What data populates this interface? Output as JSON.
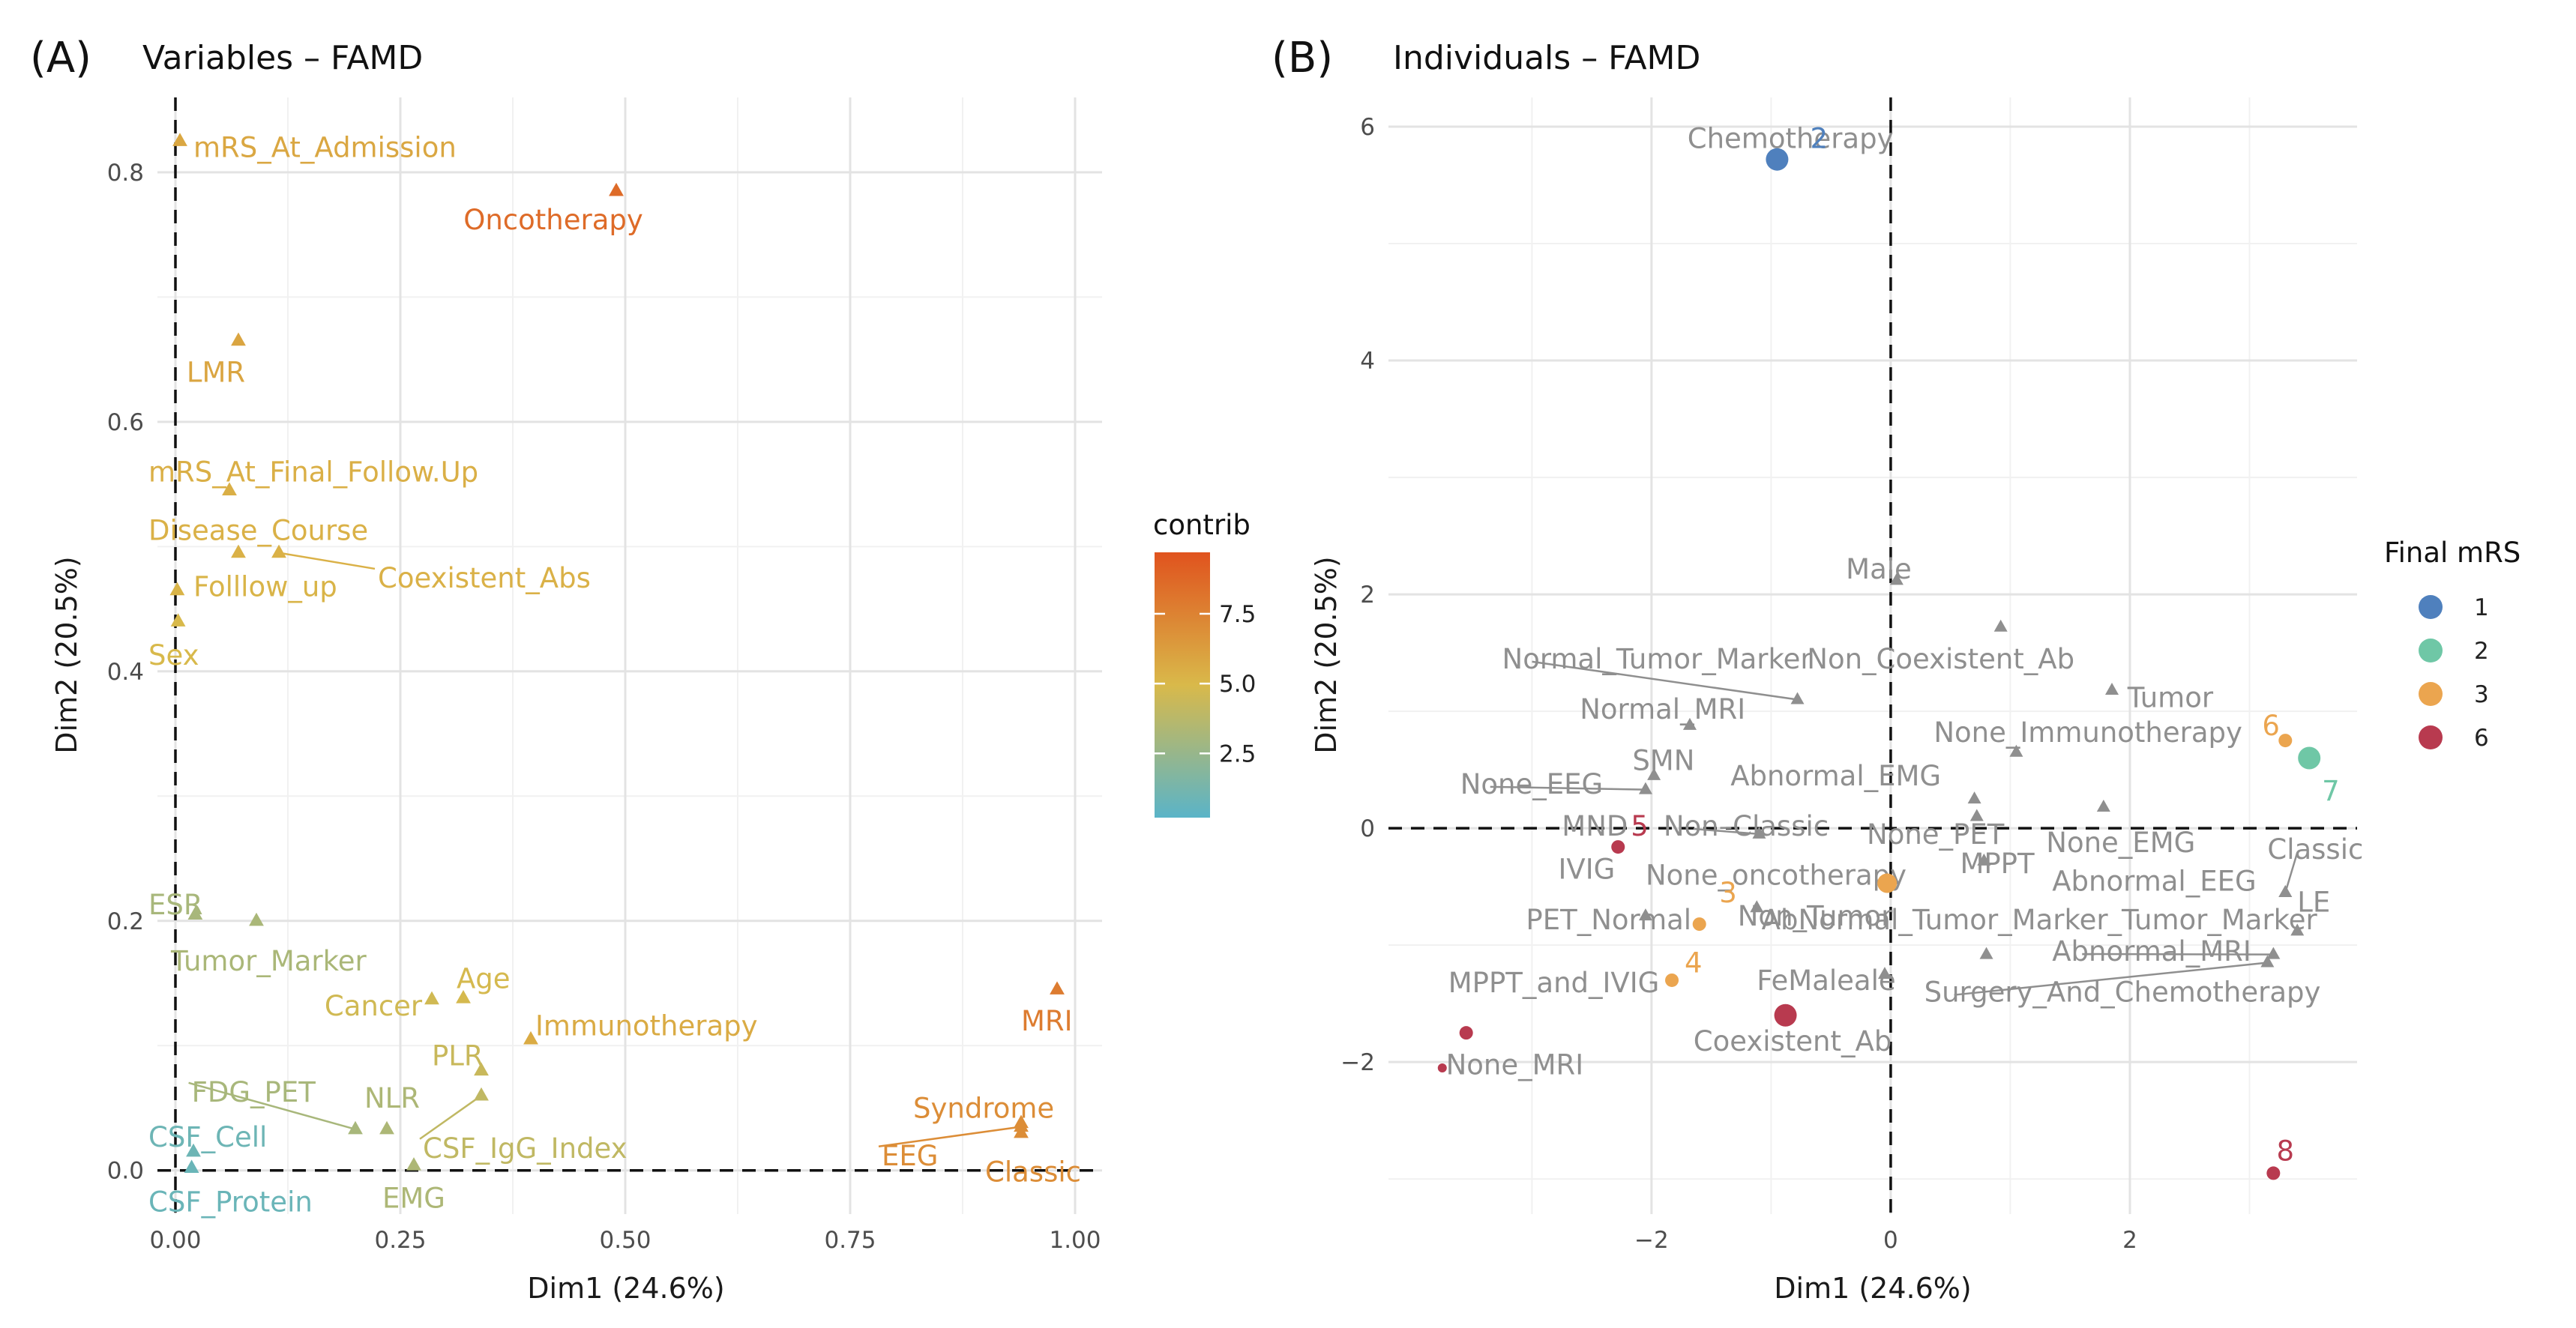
{
  "colors": {
    "contrib_low": "#5ab4c8",
    "contrib_mid": "#d9b94a",
    "contrib_high": "#e0531e",
    "neutral": "#8f8f8f"
  },
  "chart_data": [
    {
      "type": "scatter",
      "panel_tag": "(A)",
      "title": "Variables – FAMD",
      "xlabel": "Dim1 (24.6%)",
      "ylabel": "Dim2 (20.5%)",
      "xlim": [
        -0.02,
        1.03
      ],
      "ylim": [
        -0.035,
        0.86
      ],
      "x_ticks": [
        {
          "value": 0,
          "label": "0.00"
        },
        {
          "value": 0.25,
          "label": "0.25"
        },
        {
          "value": 0.5,
          "label": "0.50"
        },
        {
          "value": 0.75,
          "label": "0.75"
        },
        {
          "value": 1,
          "label": "1.00"
        }
      ],
      "y_ticks": [
        {
          "value": 0,
          "label": "0.0"
        },
        {
          "value": 0.2,
          "label": "0.2"
        },
        {
          "value": 0.4,
          "label": "0.4"
        },
        {
          "value": 0.6,
          "label": "0.6"
        },
        {
          "value": 0.8,
          "label": "0.8"
        }
      ],
      "legend": {
        "title": "contrib",
        "placement": "right",
        "range": [
          0.2,
          9.7
        ],
        "ticks": [
          {
            "value": 2.5,
            "label": "2.5"
          },
          {
            "value": 5,
            "label": "5.0"
          },
          {
            "value": 7.5,
            "label": "7.5"
          }
        ]
      },
      "points": [
        {
          "name": "mRS_At_Admission",
          "x": 0.005,
          "y": 0.825,
          "contrib": 5.8,
          "lx": 0.02,
          "ly": 0.82,
          "anchor": "start"
        },
        {
          "name": "Oncotherapy",
          "x": 0.49,
          "y": 0.785,
          "contrib": 8.6,
          "lx": 0.42,
          "ly": 0.762,
          "anchor": "middle"
        },
        {
          "name": "LMR",
          "x": 0.07,
          "y": 0.665,
          "contrib": 5.9,
          "lx": 0.045,
          "ly": 0.64,
          "anchor": "middle"
        },
        {
          "name": "mRS_At_Final_Follow.Up",
          "x": 0.06,
          "y": 0.545,
          "contrib": 5.4,
          "lx": -0.03,
          "ly": 0.56,
          "anchor": "start"
        },
        {
          "name": "Disease_Course",
          "x": 0.07,
          "y": 0.495,
          "contrib": 5.3,
          "lx": -0.03,
          "ly": 0.513,
          "anchor": "start"
        },
        {
          "name": "Coexistent_Abs",
          "x": 0.115,
          "y": 0.495,
          "contrib": 5.3,
          "lx": 0.225,
          "ly": 0.475,
          "anchor": "start",
          "leader": true
        },
        {
          "name": "Folllow_up",
          "x": 0.002,
          "y": 0.465,
          "contrib": 5.2,
          "lx": 0.02,
          "ly": 0.468,
          "anchor": "start"
        },
        {
          "name": "Sex",
          "x": 0.003,
          "y": 0.44,
          "contrib": 4.9,
          "lx": -0.03,
          "ly": 0.413,
          "anchor": "start"
        },
        {
          "name": "ESR",
          "x": 0.022,
          "y": 0.205,
          "contrib": 3.1,
          "lx": -0.03,
          "ly": 0.213,
          "anchor": "start"
        },
        {
          "name": "Tumor_Marker",
          "x": 0.09,
          "y": 0.2,
          "contrib": 3.2,
          "lx": -0.005,
          "ly": 0.168,
          "anchor": "start"
        },
        {
          "name": "Age",
          "x": 0.32,
          "y": 0.138,
          "contrib": 4.8,
          "lx": 0.3125,
          "ly": 0.154,
          "anchor": "start"
        },
        {
          "name": "Cancer",
          "x": 0.285,
          "y": 0.137,
          "contrib": 4.6,
          "lx": 0.22,
          "ly": 0.132,
          "anchor": "middle"
        },
        {
          "name": "Immunotherapy",
          "x": 0.395,
          "y": 0.105,
          "contrib": 5.6,
          "lx": 0.4,
          "ly": 0.116,
          "anchor": "start"
        },
        {
          "name": "PLR",
          "x": 0.34,
          "y": 0.08,
          "contrib": 4.3,
          "lx": 0.285,
          "ly": 0.092,
          "anchor": "start"
        },
        {
          "name": "NLR",
          "x": 0.235,
          "y": 0.033,
          "contrib": 3.3,
          "lx": 0.21,
          "ly": 0.058,
          "anchor": "start"
        },
        {
          "name": "FDG_PET",
          "x": 0.2,
          "y": 0.033,
          "contrib": 3.1,
          "lx": 0.018,
          "ly": 0.063,
          "anchor": "start",
          "leader": true
        },
        {
          "name": "CSF_IgG_Index",
          "x": 0.34,
          "y": 0.06,
          "contrib": 4.0,
          "lx": 0.275,
          "ly": 0.018,
          "anchor": "start",
          "leader": true
        },
        {
          "name": "CSF_Cell",
          "x": 0.02,
          "y": 0.015,
          "contrib": 0.9,
          "lx": -0.03,
          "ly": 0.027,
          "anchor": "start"
        },
        {
          "name": "CSF_Protein",
          "x": 0.018,
          "y": 0.002,
          "contrib": 0.8,
          "lx": -0.03,
          "ly": -0.025,
          "anchor": "start"
        },
        {
          "name": "EMG",
          "x": 0.265,
          "y": 0.004,
          "contrib": 3.3,
          "lx": 0.23,
          "ly": -0.022,
          "anchor": "start"
        },
        {
          "name": "MRI",
          "x": 0.98,
          "y": 0.145,
          "contrib": 7.8,
          "lx": 0.94,
          "ly": 0.12,
          "anchor": "start"
        },
        {
          "name": "Syndrome",
          "x": 0.94,
          "y": 0.038,
          "contrib": 7.0,
          "lx": 0.82,
          "ly": 0.05,
          "anchor": "start"
        },
        {
          "name": "EEG",
          "x": 0.94,
          "y": 0.035,
          "contrib": 7.0,
          "lx": 0.785,
          "ly": 0.012,
          "anchor": "start",
          "leader": true
        },
        {
          "name": "Classic",
          "x": 0.94,
          "y": 0.03,
          "contrib": 7.0,
          "lx": 0.9,
          "ly": -0.001,
          "anchor": "start"
        }
      ]
    },
    {
      "type": "scatter",
      "panel_tag": "(B)",
      "title": "Individuals – FAMD",
      "xlabel": "Dim1 (24.6%)",
      "ylabel": "Dim2 (20.5%)",
      "xlim": [
        -4.2,
        3.9
      ],
      "ylim": [
        -3.3,
        6.25
      ],
      "x_ticks": [
        {
          "value": -2,
          "label": "−2"
        },
        {
          "value": 0,
          "label": "0"
        },
        {
          "value": 2,
          "label": "2"
        }
      ],
      "y_ticks": [
        {
          "value": -2,
          "label": "−2"
        },
        {
          "value": 0,
          "label": "0"
        },
        {
          "value": 2,
          "label": "2"
        },
        {
          "value": 4,
          "label": "4"
        },
        {
          "value": 6,
          "label": "6"
        }
      ],
      "legend": {
        "title": "Final mRS",
        "placement": "right",
        "items": [
          {
            "label": "1",
            "color": "#4f80bd"
          },
          {
            "label": "2",
            "color": "#6fc7a6"
          },
          {
            "label": "3",
            "color": "#eba54f"
          },
          {
            "label": "6",
            "color": "#b83a4f"
          }
        ]
      },
      "individuals": [
        {
          "id": "2",
          "x": -0.95,
          "y": 5.72,
          "mrs": "1",
          "size": 15,
          "lx": -0.6,
          "ly": 5.9
        },
        {
          "id": "6",
          "x": 3.3,
          "y": 0.75,
          "mrs": "3",
          "size": 9,
          "lx": 3.18,
          "ly": 0.88
        },
        {
          "id": "7",
          "x": 3.5,
          "y": 0.6,
          "mrs": "2",
          "size": 15,
          "lx": 3.68,
          "ly": 0.32
        },
        {
          "id": "5",
          "x": -2.28,
          "y": -0.16,
          "mrs": "6",
          "size": 9,
          "lx": -2.1,
          "ly": 0.02
        },
        {
          "id": "3",
          "x": -1.6,
          "y": -0.82,
          "mrs": "3",
          "size": 9,
          "lx": -1.36,
          "ly": -0.55
        },
        {
          "id": "4",
          "x": -1.83,
          "y": -1.3,
          "mrs": "3",
          "size": 9,
          "lx": -1.65,
          "ly": -1.15
        },
        {
          "id": "",
          "x": -0.03,
          "y": -0.47,
          "mrs": "3",
          "size": 13,
          "lx": 0,
          "ly": 0
        },
        {
          "id": "",
          "x": -0.88,
          "y": -1.6,
          "mrs": "6",
          "size": 15,
          "lx": 0,
          "ly": 0
        },
        {
          "id": "",
          "x": -3.55,
          "y": -1.75,
          "mrs": "6",
          "size": 9,
          "lx": 0,
          "ly": 0
        },
        {
          "id": "",
          "x": -3.75,
          "y": -2.05,
          "mrs": "6",
          "size": 6,
          "lx": -3.72,
          "ly": -2.02
        },
        {
          "id": "8",
          "x": 3.2,
          "y": -2.95,
          "mrs": "6",
          "size": 9,
          "lx": 3.3,
          "ly": -2.76
        }
      ],
      "categories": [
        {
          "name": "Chemotherapy",
          "x": -0.95,
          "y": 5.72,
          "lx": -1.7,
          "ly": 5.9,
          "anchor": "start",
          "marker": false
        },
        {
          "name": "Male",
          "x": 0.05,
          "y": 2.12,
          "lx": -0.1,
          "ly": 2.22,
          "anchor": "middle"
        },
        {
          "name": "Non_Coexistent_Ab",
          "x": 0.92,
          "y": 1.72,
          "lx": -0.7,
          "ly": 1.45,
          "anchor": "start"
        },
        {
          "name": "Normal_Tumor_Marker",
          "x": -0.78,
          "y": 1.1,
          "lx": -3.25,
          "ly": 1.45,
          "anchor": "start",
          "leader": true
        },
        {
          "name": "Tumor",
          "x": 1.85,
          "y": 1.18,
          "lx": 1.98,
          "ly": 1.12,
          "anchor": "start"
        },
        {
          "name": "Normal_MRI",
          "x": -1.68,
          "y": 0.88,
          "lx": -2.6,
          "ly": 1.02,
          "anchor": "start"
        },
        {
          "name": "None_Immunotherapy",
          "x": 1.05,
          "y": 0.65,
          "lx": 0.36,
          "ly": 0.82,
          "anchor": "start"
        },
        {
          "name": "SMN",
          "x": -1.98,
          "y": 0.45,
          "lx": -1.9,
          "ly": 0.58,
          "anchor": "middle"
        },
        {
          "name": "None_EEG",
          "x": -2.05,
          "y": 0.33,
          "lx": -3.6,
          "ly": 0.38,
          "anchor": "start",
          "leader": true
        },
        {
          "name": "Abnormal_EMG",
          "x": 0.7,
          "y": 0.25,
          "lx": -1.34,
          "ly": 0.45,
          "anchor": "start"
        },
        {
          "name": "Non–Classic",
          "x": -1.1,
          "y": -0.05,
          "lx": -1.9,
          "ly": 0.02,
          "anchor": "start",
          "leader": true
        },
        {
          "name": "None_PET",
          "x": 0.72,
          "y": 0.1,
          "lx": -0.2,
          "ly": -0.05,
          "anchor": "start"
        },
        {
          "name": "None_EMG",
          "x": 1.78,
          "y": 0.18,
          "lx": 1.3,
          "ly": -0.12,
          "anchor": "start"
        },
        {
          "name": "MND",
          "x": -2.25,
          "y": -0.16,
          "lx": -2.75,
          "ly": 0.02,
          "anchor": "start",
          "marker": false
        },
        {
          "name": "Classic",
          "x": 3.3,
          "y": -0.55,
          "lx": 3.15,
          "ly": -0.18,
          "anchor": "start",
          "leader": true
        },
        {
          "name": "IVIG",
          "x": -2.25,
          "y": -0.16,
          "lx": -2.78,
          "ly": -0.35,
          "anchor": "start",
          "marker": false
        },
        {
          "name": "MPPT",
          "x": 0.78,
          "y": -0.28,
          "lx": 0.58,
          "ly": -0.3,
          "anchor": "start"
        },
        {
          "name": "None_oncotherapy",
          "x": -0.03,
          "y": -0.47,
          "lx": -2.05,
          "ly": -0.4,
          "anchor": "start",
          "marker": false
        },
        {
          "name": "Abnormal_EEG",
          "x": 3.3,
          "y": -0.55,
          "lx": 1.35,
          "ly": -0.45,
          "anchor": "start"
        },
        {
          "name": "PET_Normal",
          "x": -2.05,
          "y": -0.75,
          "lx": -3.05,
          "ly": -0.78,
          "anchor": "start"
        },
        {
          "name": "Non_Tumor",
          "x": -1.12,
          "y": -0.68,
          "lx": -1.28,
          "ly": -0.75,
          "anchor": "start"
        },
        {
          "name": "AbNormal_Tumor_Marker_Tumor_Marker",
          "x": 0.8,
          "y": -1.08,
          "lx": -1.08,
          "ly": -0.78,
          "anchor": "start"
        },
        {
          "name": "LE",
          "x": 3.4,
          "y": -0.88,
          "lx": 3.4,
          "ly": -0.63,
          "anchor": "start"
        },
        {
          "name": "Abnormal_MRI",
          "x": 3.2,
          "y": -1.08,
          "lx": 1.35,
          "ly": -1.05,
          "anchor": "start",
          "leader": true
        },
        {
          "name": "MPPT_and_IVIG",
          "x": -3.55,
          "y": -1.75,
          "lx": -3.7,
          "ly": -1.32,
          "anchor": "start",
          "marker": false
        },
        {
          "name": "FeMaleale",
          "x": -0.05,
          "y": -1.25,
          "lx": -1.12,
          "ly": -1.3,
          "anchor": "start"
        },
        {
          "name": "Surgery_And_Chemotherapy",
          "x": 3.15,
          "y": -1.15,
          "lx": 0.28,
          "ly": -1.4,
          "anchor": "start",
          "leader": true
        },
        {
          "name": "Coexistent_Ab",
          "x": -0.88,
          "y": -1.6,
          "lx": -1.65,
          "ly": -1.82,
          "anchor": "start",
          "marker": false
        },
        {
          "name": "None_MRI",
          "x": -3.75,
          "y": -2.05,
          "lx": -3.72,
          "ly": -2.02,
          "anchor": "start",
          "marker": false
        }
      ]
    }
  ]
}
